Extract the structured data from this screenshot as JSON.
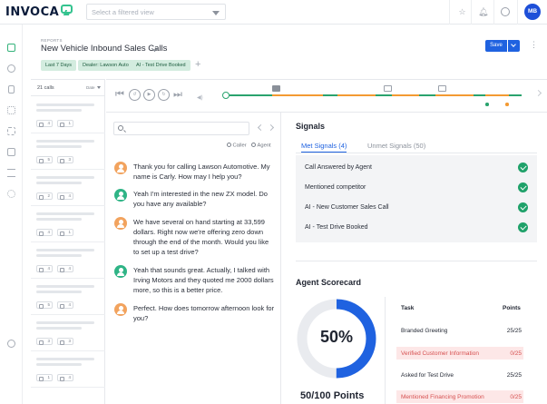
{
  "colors": {
    "brand_blue": "#1f62e0",
    "green": "#2aa36e",
    "orange": "#f39a32",
    "caller_avatar": "#f2a35e",
    "agent_avatar": "#2fb486",
    "fail_row": "#fde7e7"
  },
  "app": {
    "logo": "INVOCA",
    "view_select_placeholder": "Select a filtered view",
    "user_initials": "MB",
    "icons": [
      "star-icon",
      "bell-icon",
      "clock-icon"
    ]
  },
  "leftnav": {
    "icons": [
      "dashboard-icon",
      "target-icon",
      "phone-icon",
      "network-icon",
      "grid-icon",
      "inbox-icon",
      "list-icon",
      "heart-icon",
      "settings-icon"
    ]
  },
  "header": {
    "breadcrumb": "REPORTS",
    "title": "New Vehicle Inbound Sales Calls",
    "filters": [
      "Last 7 Days",
      "Dealer: Lawson Auto",
      "AI - Test Drive Booked"
    ],
    "add_filter": "+",
    "save_label": "Save"
  },
  "calls": {
    "count_label": "21 calls",
    "sort_label": "Date",
    "items": [
      {
        "a": "4",
        "b": "1"
      },
      {
        "a": "5",
        "b": "3"
      },
      {
        "a": "2",
        "b": "4"
      },
      {
        "a": "4",
        "b": "1"
      },
      {
        "a": "4",
        "b": "4"
      },
      {
        "a": "5",
        "b": "4"
      },
      {
        "a": "3",
        "b": "3"
      },
      {
        "a": "1",
        "b": "4"
      }
    ]
  },
  "player": {
    "speed_label": "◀)"
  },
  "transcript": {
    "search_placeholder": "",
    "legend_caller": "Caller",
    "legend_agent": "Agent",
    "messages": [
      {
        "speaker": "caller",
        "text": "Thank you for calling Lawson Automotive. My name is Carly. How may I help you?"
      },
      {
        "speaker": "agent",
        "text": "Yeah I'm interested in the new ZX model. Do you have any available?"
      },
      {
        "speaker": "caller",
        "text": "We have several on hand starting at 33,599 dollars. Right now we're offering zero down through the end of the month. Would you like to set up a test drive?"
      },
      {
        "speaker": "agent",
        "text": "Yeah that sounds great. Actually, I talked with Irving Motors and they quoted me 2000 dollars more, so this is a better price."
      },
      {
        "speaker": "caller",
        "text": "Perfect. How does tomorrow afternoon look for you?"
      }
    ]
  },
  "signals": {
    "title": "Signals",
    "tab_met": "Met Signals (4)",
    "tab_unmet": "Unmet Signals (50)",
    "items": [
      "Call Answered by Agent",
      "Mentioned competitor",
      "AI - New Customer Sales Call",
      "AI - Test Drive Booked"
    ]
  },
  "scorecard": {
    "title": "Agent Scorecard",
    "percent": 0.5,
    "percent_label": "50%",
    "points_label": "50/100 Points",
    "col_task": "Task",
    "col_points": "Points",
    "rows": [
      {
        "task": "Branded Greeting",
        "points": "25/25",
        "status": "pass"
      },
      {
        "task": "Verified Customer Information",
        "points": "0/25",
        "status": "fail"
      },
      {
        "task": "Asked for Test Drive",
        "points": "25/25",
        "status": "pass"
      },
      {
        "task": "Mentioned Financing Promotion",
        "points": "0/25",
        "status": "fail"
      }
    ]
  }
}
